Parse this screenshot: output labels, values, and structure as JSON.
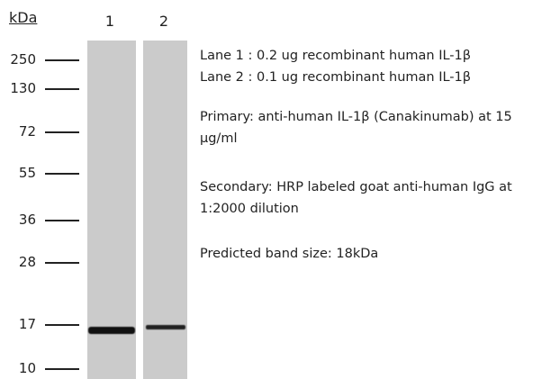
{
  "axis_label": "kDa",
  "lanes": [
    "1",
    "2"
  ],
  "markers": [
    "250",
    "130",
    "72",
    "55",
    "36",
    "28",
    "17",
    "10"
  ],
  "notes": [
    "Lane 1 : 0.2 ug recombinant human IL-1β",
    "Lane 2 : 0.1 ug recombinant human IL-1β",
    "Primary: anti-human IL-1β (Canakinumab) at 15 μg/ml",
    "Secondary: HRP labeled goat anti-human IgG at 1:2000 dilution",
    "Predicted band size: 18kDa"
  ]
}
